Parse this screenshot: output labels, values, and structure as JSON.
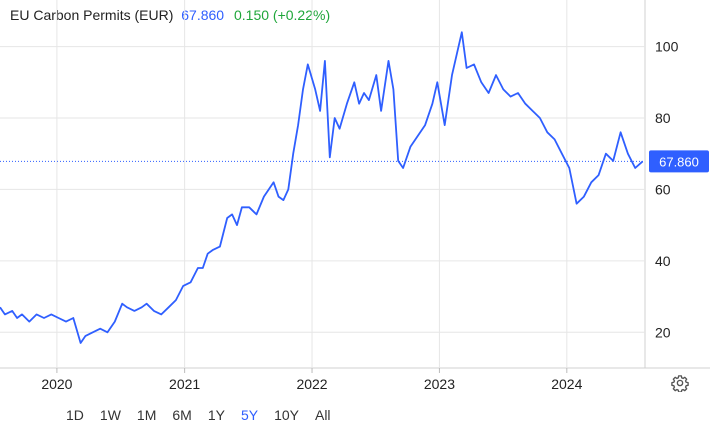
{
  "header": {
    "title": "EU Carbon Permits (EUR)",
    "price": "67.860",
    "change": "0.150 (+0.22%)"
  },
  "ranges": [
    "1D",
    "1W",
    "1M",
    "6M",
    "1Y",
    "5Y",
    "10Y",
    "All"
  ],
  "active_range": "5Y",
  "colors": {
    "line": "#2f5fff",
    "change": "#1fa63a",
    "grid": "#e6e6e6",
    "badge": "#2f5fff"
  },
  "settings_icon": "gear-icon",
  "chart_data": {
    "type": "line",
    "title": "EU Carbon Permits (EUR)",
    "xlabel": "",
    "ylabel": "",
    "x_ticks": [
      "2020",
      "2021",
      "2022",
      "2023",
      "2024"
    ],
    "x_tick_dates": [
      "2020-01-01",
      "2021-01-01",
      "2022-01-01",
      "2023-01-01",
      "2024-01-01"
    ],
    "xlim": [
      "2019-07-22",
      "2024-08-12"
    ],
    "y_ticks": [
      20,
      40,
      60,
      80,
      100
    ],
    "ylim": [
      10,
      108
    ],
    "last_value": 67.86,
    "last_label": "67.860",
    "grid": true,
    "series": [
      {
        "x": [
          "2019-07-22",
          "2019-08-05",
          "2019-08-26",
          "2019-09-09",
          "2019-09-23",
          "2019-10-14",
          "2019-11-04",
          "2019-11-25",
          "2019-12-16",
          "2020-01-06",
          "2020-01-27",
          "2020-02-17",
          "2020-03-09",
          "2020-03-23",
          "2020-04-13",
          "2020-05-04",
          "2020-05-25",
          "2020-06-15",
          "2020-07-06",
          "2020-07-20",
          "2020-08-10",
          "2020-08-31",
          "2020-09-14",
          "2020-10-05",
          "2020-10-26",
          "2020-11-16",
          "2020-12-07",
          "2020-12-28",
          "2021-01-18",
          "2021-02-08",
          "2021-02-22",
          "2021-03-08",
          "2021-03-22",
          "2021-04-12",
          "2021-05-03",
          "2021-05-17",
          "2021-05-31",
          "2021-06-14",
          "2021-07-05",
          "2021-07-26",
          "2021-08-16",
          "2021-08-30",
          "2021-09-13",
          "2021-09-27",
          "2021-10-11",
          "2021-10-25",
          "2021-11-08",
          "2021-11-22",
          "2021-12-06",
          "2021-12-20",
          "2022-01-10",
          "2022-01-24",
          "2022-02-07",
          "2022-02-21",
          "2022-03-07",
          "2022-03-21",
          "2022-04-11",
          "2022-05-02",
          "2022-05-16",
          "2022-05-30",
          "2022-06-13",
          "2022-07-04",
          "2022-07-18",
          "2022-08-08",
          "2022-08-22",
          "2022-09-05",
          "2022-09-19",
          "2022-10-10",
          "2022-10-31",
          "2022-11-21",
          "2022-12-12",
          "2022-12-26",
          "2023-01-16",
          "2023-02-06",
          "2023-02-20",
          "2023-03-06",
          "2023-03-20",
          "2023-04-10",
          "2023-05-01",
          "2023-05-22",
          "2023-06-12",
          "2023-07-03",
          "2023-07-24",
          "2023-08-14",
          "2023-09-04",
          "2023-09-25",
          "2023-10-16",
          "2023-11-06",
          "2023-11-27",
          "2023-12-18",
          "2024-01-08",
          "2024-01-29",
          "2024-02-19",
          "2024-03-11",
          "2024-04-01",
          "2024-04-22",
          "2024-05-13",
          "2024-06-03",
          "2024-06-24",
          "2024-07-15",
          "2024-08-05"
        ],
        "y": [
          27,
          25,
          26,
          24,
          25,
          23,
          25,
          24,
          25,
          24,
          23,
          24,
          17,
          19,
          20,
          21,
          20,
          23,
          28,
          27,
          26,
          27,
          28,
          26,
          25,
          27,
          29,
          33,
          34,
          38,
          38,
          42,
          43,
          44,
          52,
          53,
          50,
          55,
          55,
          53,
          58,
          60,
          62,
          58,
          57,
          60,
          70,
          78,
          88,
          95,
          88,
          82,
          96,
          69,
          80,
          77,
          84,
          90,
          84,
          87,
          85,
          92,
          82,
          96,
          88,
          68,
          66,
          72,
          75,
          78,
          84,
          90,
          78,
          92,
          98,
          104,
          94,
          95,
          90,
          87,
          92,
          88,
          86,
          87,
          84,
          82,
          80,
          76,
          74,
          70,
          66,
          56,
          58,
          62,
          64,
          70,
          68,
          76,
          70,
          66,
          67.86
        ]
      }
    ]
  }
}
